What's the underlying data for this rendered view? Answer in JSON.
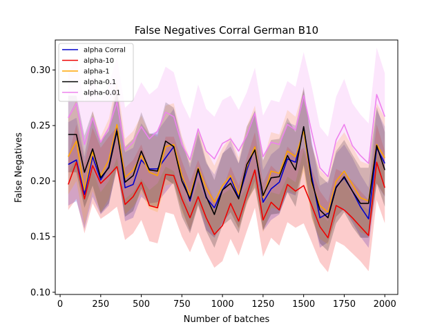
{
  "chart_data": {
    "type": "line",
    "title": "False Negatives Corral German B10",
    "xlabel": "Number of batches",
    "ylabel": "False Negatives",
    "xlim": [
      -30,
      2080
    ],
    "ylim": [
      0.098,
      0.327
    ],
    "xticks": [
      0,
      250,
      500,
      750,
      1000,
      1250,
      1500,
      1750,
      2000
    ],
    "yticks": [
      0.1,
      0.15,
      0.2,
      0.25,
      0.3
    ],
    "xtick_labels": [
      "0",
      "250",
      "500",
      "750",
      "1000",
      "1250",
      "1500",
      "1750",
      "2000"
    ],
    "ytick_labels": [
      "0.10",
      "0.15",
      "0.20",
      "0.25",
      "0.30"
    ],
    "grid": false,
    "legend_position": "top-left",
    "x": [
      50,
      100,
      150,
      200,
      250,
      300,
      350,
      400,
      450,
      500,
      550,
      600,
      650,
      700,
      750,
      800,
      850,
      900,
      950,
      1000,
      1050,
      1100,
      1150,
      1200,
      1250,
      1300,
      1350,
      1400,
      1450,
      1500,
      1550,
      1600,
      1650,
      1700,
      1750,
      1800,
      1850,
      1900,
      1950,
      2000
    ],
    "series": [
      {
        "name": "alpha Corral",
        "color": "#0000cc",
        "values": [
          0.215,
          0.219,
          0.188,
          0.222,
          0.201,
          0.213,
          0.249,
          0.194,
          0.197,
          0.219,
          0.211,
          0.211,
          0.221,
          0.231,
          0.205,
          0.182,
          0.21,
          0.185,
          0.176,
          0.192,
          0.203,
          0.185,
          0.21,
          0.231,
          0.181,
          0.193,
          0.199,
          0.22,
          0.217,
          0.248,
          0.204,
          0.167,
          0.171,
          0.195,
          0.203,
          0.191,
          0.177,
          0.166,
          0.23,
          0.216
        ],
        "lower": [
          0.178,
          0.182,
          0.157,
          0.186,
          0.17,
          0.178,
          0.214,
          0.164,
          0.167,
          0.186,
          0.18,
          0.181,
          0.19,
          0.199,
          0.175,
          0.155,
          0.18,
          0.156,
          0.149,
          0.162,
          0.172,
          0.158,
          0.18,
          0.2,
          0.155,
          0.165,
          0.17,
          0.19,
          0.187,
          0.215,
          0.174,
          0.14,
          0.145,
          0.168,
          0.175,
          0.163,
          0.15,
          0.14,
          0.198,
          0.186
        ],
        "upper": [
          0.253,
          0.257,
          0.222,
          0.259,
          0.235,
          0.249,
          0.284,
          0.226,
          0.23,
          0.252,
          0.242,
          0.245,
          0.255,
          0.265,
          0.238,
          0.212,
          0.242,
          0.216,
          0.206,
          0.224,
          0.237,
          0.216,
          0.243,
          0.264,
          0.21,
          0.224,
          0.23,
          0.253,
          0.25,
          0.282,
          0.236,
          0.196,
          0.2,
          0.225,
          0.233,
          0.221,
          0.206,
          0.194,
          0.264,
          0.249
        ]
      },
      {
        "name": "alpha-10",
        "color": "#ee0000",
        "values": [
          0.197,
          0.217,
          0.184,
          0.214,
          0.198,
          0.205,
          0.213,
          0.179,
          0.186,
          0.199,
          0.178,
          0.176,
          0.206,
          0.205,
          0.184,
          0.167,
          0.186,
          0.167,
          0.152,
          0.16,
          0.18,
          0.164,
          0.188,
          0.21,
          0.165,
          0.181,
          0.174,
          0.197,
          0.191,
          0.196,
          0.178,
          0.159,
          0.149,
          0.178,
          0.174,
          0.167,
          0.159,
          0.151,
          0.217,
          0.194
        ],
        "lower": [
          0.174,
          0.184,
          0.153,
          0.18,
          0.166,
          0.171,
          0.177,
          0.147,
          0.153,
          0.165,
          0.146,
          0.144,
          0.172,
          0.17,
          0.15,
          0.136,
          0.154,
          0.136,
          0.122,
          0.128,
          0.148,
          0.133,
          0.155,
          0.176,
          0.132,
          0.149,
          0.142,
          0.163,
          0.158,
          0.162,
          0.145,
          0.127,
          0.118,
          0.146,
          0.142,
          0.135,
          0.128,
          0.119,
          0.183,
          0.162
        ],
        "upper": [
          0.222,
          0.251,
          0.216,
          0.248,
          0.23,
          0.24,
          0.249,
          0.212,
          0.219,
          0.233,
          0.211,
          0.209,
          0.24,
          0.24,
          0.218,
          0.199,
          0.219,
          0.199,
          0.183,
          0.192,
          0.213,
          0.196,
          0.221,
          0.244,
          0.198,
          0.214,
          0.207,
          0.231,
          0.224,
          0.23,
          0.211,
          0.191,
          0.181,
          0.211,
          0.207,
          0.2,
          0.191,
          0.183,
          0.251,
          0.227
        ]
      },
      {
        "name": "alpha-1",
        "color": "#ffa500",
        "values": [
          0.222,
          0.236,
          0.192,
          0.226,
          0.205,
          0.219,
          0.251,
          0.203,
          0.21,
          0.223,
          0.208,
          0.205,
          0.231,
          0.233,
          0.205,
          0.187,
          0.212,
          0.194,
          0.181,
          0.196,
          0.205,
          0.188,
          0.213,
          0.231,
          0.185,
          0.209,
          0.207,
          0.227,
          0.222,
          0.245,
          0.198,
          0.178,
          0.172,
          0.2,
          0.209,
          0.197,
          0.185,
          0.182,
          0.233,
          0.221
        ],
        "lower": [
          0.188,
          0.2,
          0.16,
          0.191,
          0.172,
          0.184,
          0.214,
          0.17,
          0.177,
          0.189,
          0.175,
          0.172,
          0.196,
          0.198,
          0.172,
          0.156,
          0.179,
          0.162,
          0.15,
          0.164,
          0.172,
          0.157,
          0.179,
          0.196,
          0.154,
          0.176,
          0.174,
          0.192,
          0.188,
          0.209,
          0.166,
          0.148,
          0.143,
          0.168,
          0.176,
          0.165,
          0.154,
          0.151,
          0.198,
          0.187
        ],
        "upper": [
          0.258,
          0.273,
          0.226,
          0.263,
          0.24,
          0.256,
          0.29,
          0.238,
          0.245,
          0.259,
          0.243,
          0.24,
          0.268,
          0.27,
          0.24,
          0.22,
          0.247,
          0.228,
          0.214,
          0.23,
          0.24,
          0.221,
          0.249,
          0.268,
          0.218,
          0.244,
          0.242,
          0.264,
          0.258,
          0.283,
          0.232,
          0.21,
          0.203,
          0.234,
          0.244,
          0.231,
          0.218,
          0.215,
          0.27,
          0.257
        ]
      },
      {
        "name": "alpha-0.1",
        "color": "#000000",
        "values": [
          0.242,
          0.242,
          0.208,
          0.229,
          0.203,
          0.212,
          0.245,
          0.199,
          0.205,
          0.227,
          0.21,
          0.209,
          0.236,
          0.231,
          0.2,
          0.184,
          0.211,
          0.186,
          0.17,
          0.192,
          0.198,
          0.184,
          0.215,
          0.228,
          0.187,
          0.203,
          0.204,
          0.223,
          0.21,
          0.249,
          0.2,
          0.174,
          0.167,
          0.194,
          0.204,
          0.191,
          0.18,
          0.18,
          0.232,
          0.21
        ],
        "lower": [
          0.208,
          0.208,
          0.176,
          0.196,
          0.171,
          0.18,
          0.211,
          0.168,
          0.173,
          0.193,
          0.178,
          0.177,
          0.202,
          0.197,
          0.168,
          0.153,
          0.178,
          0.155,
          0.14,
          0.16,
          0.166,
          0.153,
          0.182,
          0.194,
          0.156,
          0.17,
          0.171,
          0.19,
          0.177,
          0.214,
          0.168,
          0.144,
          0.137,
          0.162,
          0.172,
          0.159,
          0.149,
          0.149,
          0.198,
          0.177
        ],
        "upper": [
          0.277,
          0.277,
          0.241,
          0.263,
          0.236,
          0.245,
          0.281,
          0.231,
          0.238,
          0.262,
          0.243,
          0.242,
          0.271,
          0.266,
          0.233,
          0.216,
          0.245,
          0.218,
          0.201,
          0.225,
          0.231,
          0.216,
          0.249,
          0.263,
          0.219,
          0.237,
          0.238,
          0.257,
          0.244,
          0.285,
          0.233,
          0.205,
          0.198,
          0.227,
          0.237,
          0.224,
          0.212,
          0.212,
          0.267,
          0.244
        ]
      },
      {
        "name": "alpha-0.01",
        "color": "#ee82ee",
        "values": [
          0.257,
          0.27,
          0.233,
          0.257,
          0.235,
          0.248,
          0.271,
          0.228,
          0.235,
          0.249,
          0.238,
          0.245,
          0.262,
          0.258,
          0.233,
          0.219,
          0.247,
          0.227,
          0.22,
          0.234,
          0.238,
          0.227,
          0.241,
          0.261,
          0.222,
          0.235,
          0.233,
          0.251,
          0.246,
          0.277,
          0.244,
          0.212,
          0.204,
          0.237,
          0.251,
          0.232,
          0.223,
          0.216,
          0.278,
          0.258
        ],
        "lower": [
          0.208,
          0.22,
          0.188,
          0.21,
          0.19,
          0.2,
          0.221,
          0.184,
          0.19,
          0.202,
          0.192,
          0.198,
          0.213,
          0.209,
          0.188,
          0.176,
          0.2,
          0.183,
          0.177,
          0.188,
          0.193,
          0.183,
          0.195,
          0.212,
          0.179,
          0.19,
          0.188,
          0.204,
          0.199,
          0.228,
          0.197,
          0.17,
          0.164,
          0.191,
          0.203,
          0.187,
          0.179,
          0.174,
          0.227,
          0.209
        ],
        "upper": [
          0.298,
          0.31,
          0.271,
          0.297,
          0.273,
          0.287,
          0.312,
          0.266,
          0.273,
          0.289,
          0.278,
          0.284,
          0.303,
          0.298,
          0.271,
          0.256,
          0.287,
          0.265,
          0.258,
          0.273,
          0.277,
          0.264,
          0.28,
          0.302,
          0.259,
          0.273,
          0.271,
          0.29,
          0.285,
          0.316,
          0.285,
          0.249,
          0.24,
          0.276,
          0.292,
          0.27,
          0.26,
          0.252,
          0.32,
          0.297
        ]
      }
    ]
  }
}
